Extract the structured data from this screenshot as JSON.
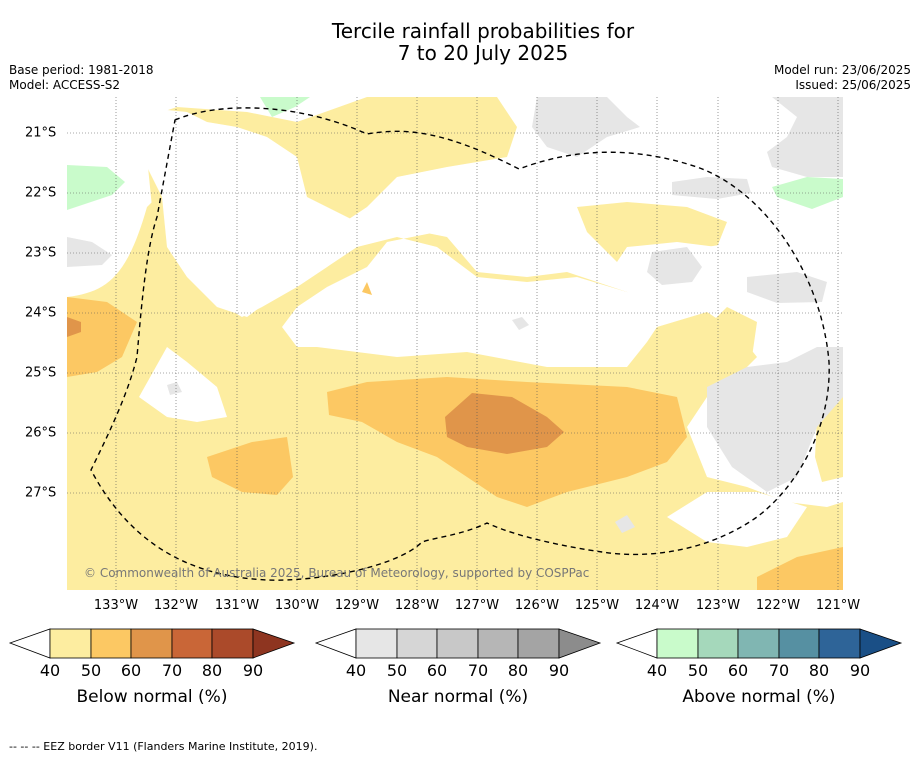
{
  "title_line1": "Tercile rainfall probabilities for",
  "title_line2": "7 to 20 July 2025",
  "base_period": "Base period: 1981-2018",
  "model": "Model: ACCESS-S2",
  "model_run": "Model run: 23/06/2025",
  "issued": "Issued: 25/06/2025",
  "lat_labels": [
    "21°S",
    "22°S",
    "23°S",
    "24°S",
    "25°S",
    "26°S",
    "27°S"
  ],
  "lon_labels": [
    "133°W",
    "132°W",
    "131°W",
    "130°W",
    "129°W",
    "128°W",
    "127°W",
    "126°W",
    "125°W",
    "124°W",
    "123°W",
    "122°W",
    "121°W"
  ],
  "copyright": "© Commonwealth of Australia 2025, Bureau of Meteorology, supported by COSPPac",
  "colorbars": [
    {
      "title": "Below normal (%)",
      "ticks": [
        "40",
        "50",
        "60",
        "70",
        "80",
        "90"
      ],
      "colors": [
        "#fdeda0",
        "#fcc863",
        "#e0954a",
        "#c96637",
        "#ab4a2a",
        "#8e3520"
      ]
    },
    {
      "title": "Near normal (%)",
      "ticks": [
        "40",
        "50",
        "60",
        "70",
        "80",
        "90"
      ],
      "colors": [
        "#e6e6e6",
        "#d6d6d6",
        "#c8c8c8",
        "#b6b6b6",
        "#a4a4a4",
        "#8c8c8c"
      ]
    },
    {
      "title": "Above normal (%)",
      "ticks": [
        "40",
        "50",
        "60",
        "70",
        "80",
        "90"
      ],
      "colors": [
        "#c9fbcb",
        "#a5d8bb",
        "#80b6b2",
        "#5690a2",
        "#2e6498",
        "#1a4f86"
      ]
    }
  ],
  "footnote": "-- -- -- EEZ border V11 (Flanders Marine Institute, 2019)."
}
